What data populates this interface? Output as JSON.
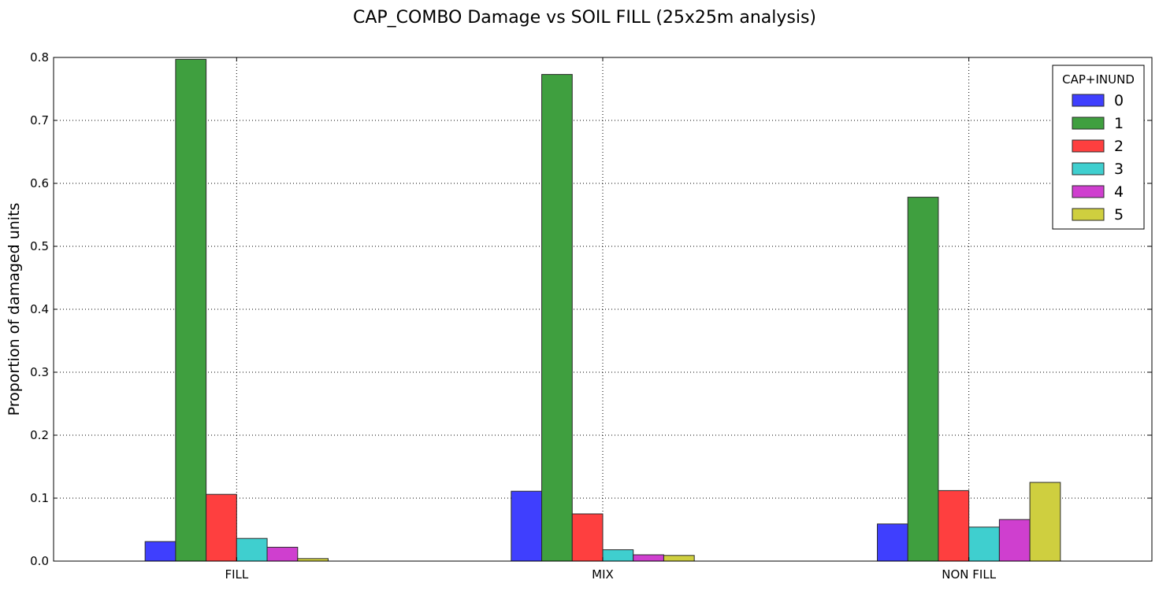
{
  "chart_data": {
    "type": "bar",
    "title": "CAP_COMBO Damage vs SOIL FILL (25x25m analysis)",
    "xlabel": "",
    "ylabel": "Proportion of damaged units",
    "categories": [
      "FILL",
      "MIX",
      "NON FILL"
    ],
    "ylim": [
      0,
      0.8
    ],
    "yticks": [
      "0.0",
      "0.1",
      "0.2",
      "0.3",
      "0.4",
      "0.5",
      "0.6",
      "0.7",
      "0.8"
    ],
    "grid": true,
    "legend": {
      "title": "CAP+INUND",
      "placement": "top-right"
    },
    "series": [
      {
        "name": "0",
        "color": "#3f3ffe",
        "values": [
          0.031,
          0.111,
          0.059
        ]
      },
      {
        "name": "1",
        "color": "#3f9f3f",
        "values": [
          0.797,
          0.773,
          0.578
        ]
      },
      {
        "name": "2",
        "color": "#fe3f3f",
        "values": [
          0.106,
          0.075,
          0.112
        ]
      },
      {
        "name": "3",
        "color": "#3fcfcf",
        "values": [
          0.036,
          0.018,
          0.054
        ]
      },
      {
        "name": "4",
        "color": "#cf3fcf",
        "values": [
          0.022,
          0.01,
          0.066
        ]
      },
      {
        "name": "5",
        "color": "#cfcf3f",
        "values": [
          0.004,
          0.009,
          0.125
        ]
      }
    ]
  }
}
